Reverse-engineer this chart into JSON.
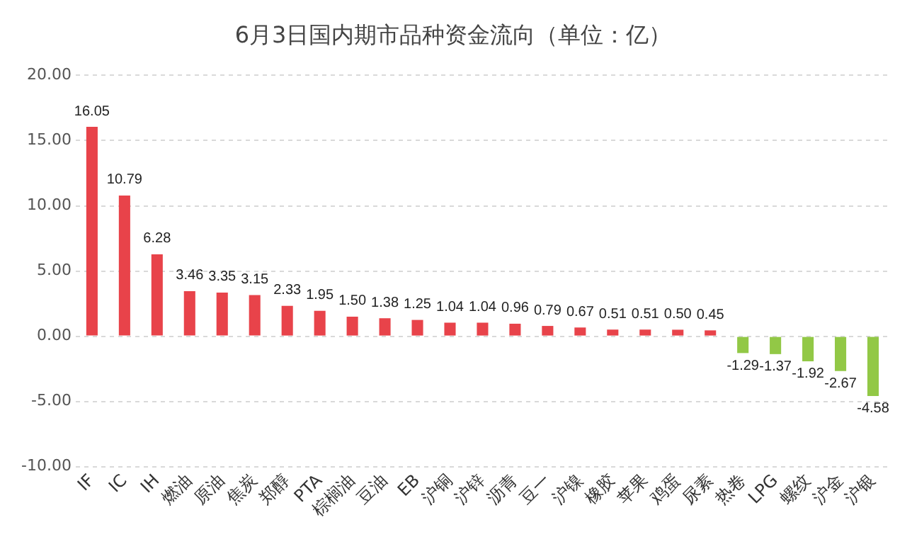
{
  "chart_data": {
    "type": "bar",
    "title": "6月3日国内期市品种资金流向（单位：亿）",
    "categories": [
      "IF",
      "IC",
      "IH",
      "燃油",
      "原油",
      "焦炭",
      "郑醇",
      "PTA",
      "棕榈油",
      "豆油",
      "EB",
      "沪铜",
      "沪锌",
      "沥青",
      "豆一",
      "沪镍",
      "橡胶",
      "苹果",
      "鸡蛋",
      "尿素",
      "热卷",
      "LPG",
      "螺纹",
      "沪金",
      "沪银"
    ],
    "values": [
      16.05,
      10.79,
      6.28,
      3.46,
      3.35,
      3.15,
      2.33,
      1.95,
      1.5,
      1.38,
      1.25,
      1.04,
      1.04,
      0.96,
      0.79,
      0.67,
      0.51,
      0.51,
      0.5,
      0.45,
      -1.29,
      -1.37,
      -1.92,
      -2.67,
      -4.58
    ],
    "colors": [
      "#e8434a",
      "#e8434a",
      "#e8434a",
      "#e8434a",
      "#e8434a",
      "#e8434a",
      "#e8434a",
      "#e8434a",
      "#e8434a",
      "#e8434a",
      "#e8434a",
      "#e8434a",
      "#e8434a",
      "#e8434a",
      "#e8434a",
      "#e8434a",
      "#e8434a",
      "#e8434a",
      "#e8434a",
      "#e8434a",
      "#92c846",
      "#92c846",
      "#92c846",
      "#92c846",
      "#92c846"
    ],
    "value_labels": [
      "16.05",
      "10.79",
      "6.28",
      "3.46",
      "3.35",
      "3.15",
      "2.33",
      "1.95",
      "1.50",
      "1.38",
      "1.25",
      "1.04",
      "1.04",
      "0.96",
      "0.79",
      "0.67",
      "0.51",
      "0.51",
      "0.50",
      "0.45",
      "-1.29",
      "-1.37",
      "-1.92",
      "-2.67",
      "-4.58"
    ],
    "ylim": [
      -10,
      20
    ],
    "yticks": [
      {
        "value": -10,
        "label": "-10.00"
      },
      {
        "value": -5,
        "label": "-5.00"
      },
      {
        "value": 0,
        "label": "0.00"
      },
      {
        "value": 5,
        "label": "5.00"
      },
      {
        "value": 10,
        "label": "10.00"
      },
      {
        "value": 15,
        "label": "15.00"
      },
      {
        "value": 20,
        "label": "20.00"
      }
    ],
    "grid": "y"
  }
}
